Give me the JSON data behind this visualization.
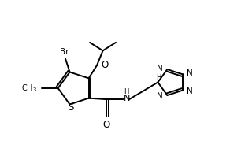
{
  "background_color": "#ffffff",
  "line_color": "#000000",
  "line_width": 1.4,
  "font_size": 7.5,
  "fig_width": 2.92,
  "fig_height": 2.12,
  "xlim": [
    0,
    9
  ],
  "ylim": [
    0,
    7
  ]
}
